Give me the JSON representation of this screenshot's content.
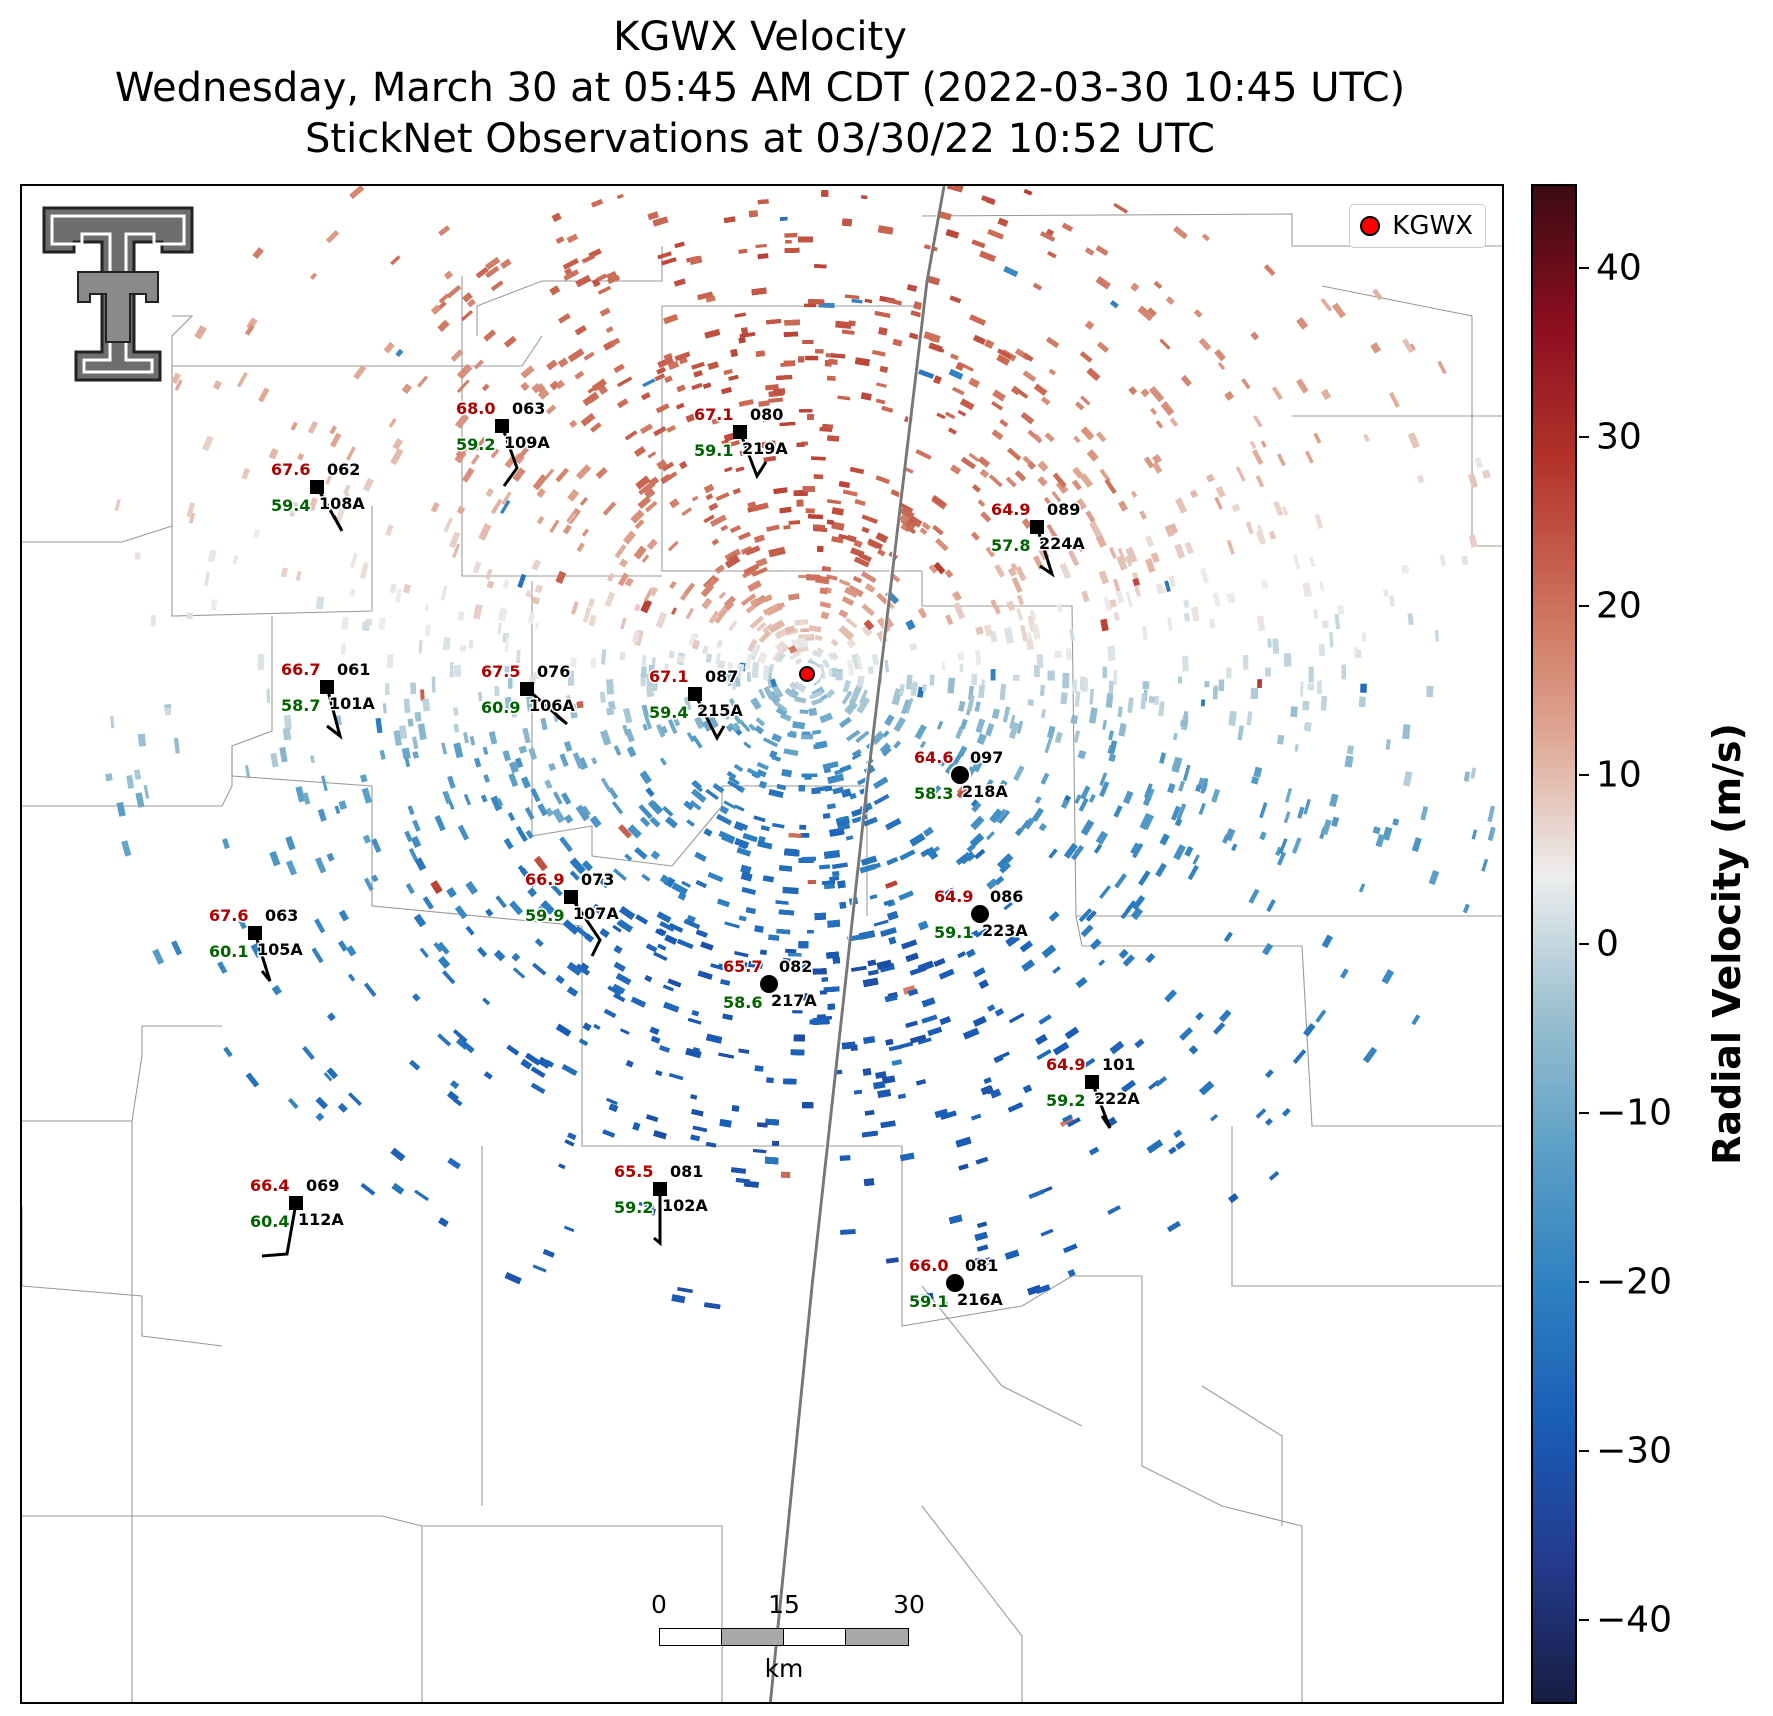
{
  "title": {
    "line1": "KGWX Velocity",
    "line2": "Wednesday, March 30 at 05:45 AM CDT (2022-03-30 10:45 UTC)",
    "line3": "StickNet Observations at 03/30/22 10:52 UTC"
  },
  "legend": {
    "label": "KGWX",
    "marker_color": "#ff0000"
  },
  "colorbar": {
    "label": "Radial Velocity (m/s)",
    "range": [
      -45,
      45
    ],
    "ticks": [
      {
        "value": 40,
        "label": "40"
      },
      {
        "value": 30,
        "label": "30"
      },
      {
        "value": 20,
        "label": "20"
      },
      {
        "value": 10,
        "label": "10"
      },
      {
        "value": 0,
        "label": "0"
      },
      {
        "value": -10,
        "label": "−10"
      },
      {
        "value": -20,
        "label": "−20"
      },
      {
        "value": -30,
        "label": "−30"
      },
      {
        "value": -40,
        "label": "−40"
      }
    ],
    "colors": [
      "#171d42",
      "#243a8c",
      "#1a5cb6",
      "#2e80c0",
      "#5c9fc6",
      "#9cc0d0",
      "#ededed",
      "#dfa895",
      "#cc6e58",
      "#b3332a",
      "#8c0e20",
      "#3b0b12"
    ]
  },
  "scale_bar": {
    "ticks": [
      "0",
      "15",
      "30"
    ],
    "unit": "km"
  },
  "logo": {
    "text": "TT"
  },
  "stations": [
    {
      "id": "109A",
      "temp": "68.0",
      "dew": "59.2",
      "dir": "063",
      "marker": "square"
    },
    {
      "id": "219A",
      "temp": "67.1",
      "dew": "59.1",
      "dir": "080",
      "marker": "square"
    },
    {
      "id": "108A",
      "temp": "67.6",
      "dew": "59.4",
      "dir": "062",
      "marker": "square"
    },
    {
      "id": "224A",
      "temp": "64.9",
      "dew": "57.8",
      "dir": "089",
      "marker": "square"
    },
    {
      "id": "101A",
      "temp": "66.7",
      "dew": "58.7",
      "dir": "061",
      "marker": "square"
    },
    {
      "id": "106A",
      "temp": "67.5",
      "dew": "60.9",
      "dir": "076",
      "marker": "square"
    },
    {
      "id": "215A",
      "temp": "67.1",
      "dew": "59.4",
      "dir": "087",
      "marker": "square"
    },
    {
      "id": "218A",
      "temp": "64.6",
      "dew": "58.3",
      "dir": "097",
      "marker": "circle"
    },
    {
      "id": "107A",
      "temp": "66.9",
      "dew": "59.9",
      "dir": "073",
      "marker": "square"
    },
    {
      "id": "223A",
      "temp": "64.9",
      "dew": "59.1",
      "dir": "086",
      "marker": "circle"
    },
    {
      "id": "105A",
      "temp": "67.6",
      "dew": "60.1",
      "dir": "063",
      "marker": "square"
    },
    {
      "id": "217A",
      "temp": "65.7",
      "dew": "58.6",
      "dir": "082",
      "marker": "circle"
    },
    {
      "id": "222A",
      "temp": "64.9",
      "dew": "59.2",
      "dir": "101",
      "marker": "square"
    },
    {
      "id": "112A",
      "temp": "66.4",
      "dew": "60.4",
      "dir": "069",
      "marker": "square"
    },
    {
      "id": "102A",
      "temp": "65.5",
      "dew": "59.2",
      "dir": "081",
      "marker": "square"
    },
    {
      "id": "216A",
      "temp": "66.0",
      "dew": "59.1",
      "dir": "081",
      "marker": "circle"
    }
  ],
  "colors": {
    "temp": "#b00000",
    "dew": "#006400",
    "radar_site": "#ff0000",
    "border": "#9a9a9a"
  }
}
